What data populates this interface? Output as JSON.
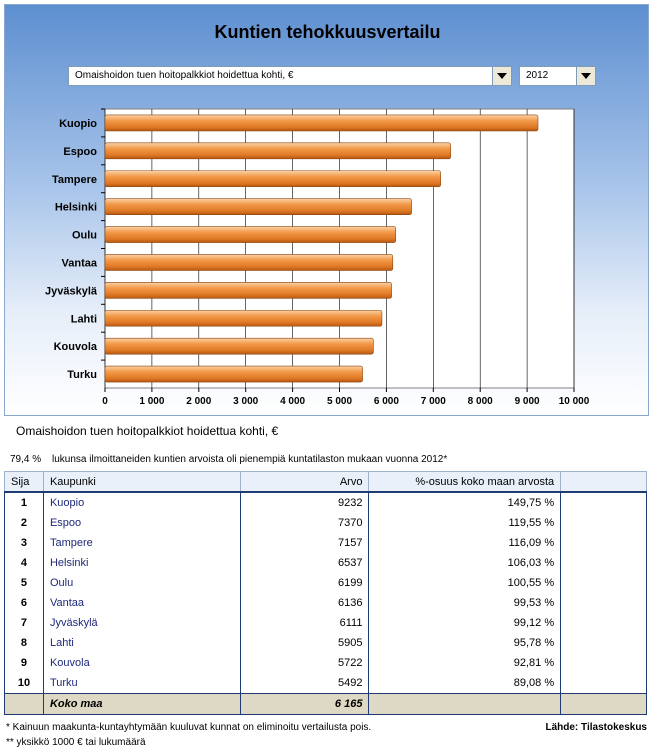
{
  "title": "Kuntien tehokkuusvertailu",
  "selectors": {
    "measure": "Omaishoidon tuen hoitopalkkiot hoidettua kohti, €",
    "year": "2012"
  },
  "chart_caption": "Omaishoidon tuen hoitopalkkiot hoidettua kohti, €",
  "note": {
    "percent": "79,4 %",
    "text": "lukunsa ilmoittaneiden kuntien arvoista oli pienempiä kuntatilaston mukaan vuonna 2012*"
  },
  "chart_data": {
    "type": "bar",
    "orientation": "horizontal",
    "title": "",
    "xlabel": "",
    "ylabel": "",
    "categories": [
      "Kuopio",
      "Espoo",
      "Tampere",
      "Helsinki",
      "Oulu",
      "Vantaa",
      "Jyväskylä",
      "Lahti",
      "Kouvola",
      "Turku"
    ],
    "values": [
      9232,
      7370,
      7157,
      6537,
      6199,
      6136,
      6111,
      5905,
      5722,
      5492
    ],
    "xlim": [
      0,
      10000
    ],
    "ticks": [
      "0",
      "1 000",
      "2 000",
      "3 000",
      "4 000",
      "5 000",
      "6 000",
      "7 000",
      "8 000",
      "9 000",
      "10 000"
    ],
    "grid": true,
    "bar_color": "#f39a4a",
    "legend": "none"
  },
  "table": {
    "headers": [
      "Sija",
      "Kaupunki",
      "Arvo",
      "%-osuus koko maan arvosta",
      ""
    ],
    "rows": [
      {
        "rank": "1",
        "city": "Kuopio",
        "value": "9232",
        "share": "149,75 %"
      },
      {
        "rank": "2",
        "city": "Espoo",
        "value": "7370",
        "share": "119,55 %"
      },
      {
        "rank": "3",
        "city": "Tampere",
        "value": "7157",
        "share": "116,09 %"
      },
      {
        "rank": "4",
        "city": "Helsinki",
        "value": "6537",
        "share": "106,03 %"
      },
      {
        "rank": "5",
        "city": "Oulu",
        "value": "6199",
        "share": "100,55 %"
      },
      {
        "rank": "6",
        "city": "Vantaa",
        "value": "6136",
        "share": "99,53 %"
      },
      {
        "rank": "7",
        "city": "Jyväskylä",
        "value": "6111",
        "share": "99,12 %"
      },
      {
        "rank": "8",
        "city": "Lahti",
        "value": "5905",
        "share": "95,78 %"
      },
      {
        "rank": "9",
        "city": "Kouvola",
        "value": "5722",
        "share": "92,81 %"
      },
      {
        "rank": "10",
        "city": "Turku",
        "value": "5492",
        "share": "89,08 %"
      }
    ],
    "total_label": "Koko maa",
    "total_value": "6 165"
  },
  "footnotes": {
    "line1": "* Kainuun maakunta-kuntayhtymään kuuluvat kunnat on eliminoitu vertailusta pois.",
    "line2": "** yksikkö 1000 € tai lukumäärä",
    "source": "Lähde: Tilastokeskus"
  }
}
